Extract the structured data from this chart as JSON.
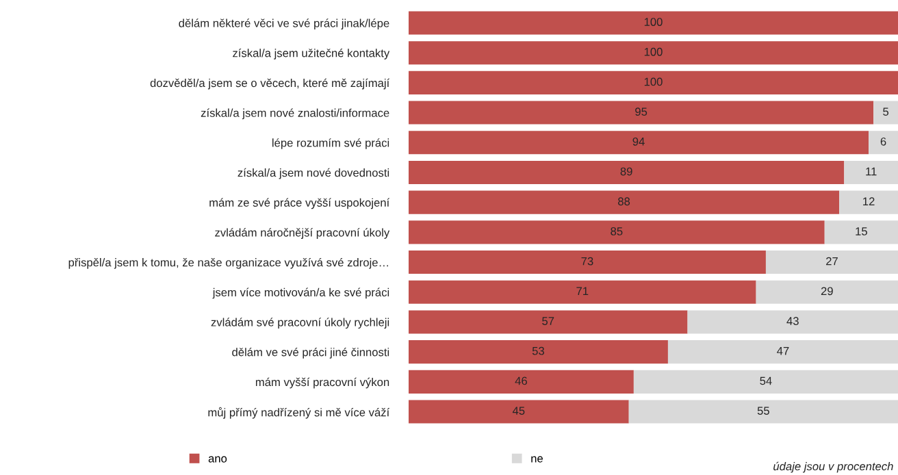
{
  "chart_data": {
    "type": "bar",
    "orientation": "horizontal",
    "stacked": true,
    "categories": [
      "dělám některé věci ve své práci jinak/lépe",
      "získal/a jsem užitečné kontakty",
      "dozvěděl/a jsem se o věcech, které mě zajímají",
      "získal/a jsem nové znalosti/informace",
      "lépe rozumím své práci",
      "získal/a jsem nové dovednosti",
      "mám ze své práce vyšší uspokojení",
      "zvládám náročnější pracovní úkoly",
      "přispěl/a jsem k tomu, že naše organizace využívá své zdroje…",
      "jsem více motivován/a ke své práci",
      "zvládám své pracovní úkoly rychleji",
      "dělám ve své práci jiné činnosti",
      "mám vyšší pracovní výkon",
      "můj přímý nadřízený si mě více váží"
    ],
    "series": [
      {
        "name": "ano",
        "color": "#c0504d",
        "values": [
          100,
          100,
          100,
          95,
          94,
          89,
          88,
          85,
          73,
          71,
          57,
          53,
          46,
          45
        ],
        "value_labels": [
          "100",
          "100",
          "100",
          "95",
          "94",
          "89",
          "88",
          "85",
          "73",
          "71",
          "57",
          "53",
          "46",
          "45"
        ]
      },
      {
        "name": "ne",
        "color": "#d9d9d9",
        "values": [
          0,
          0,
          0,
          5,
          6,
          11,
          12,
          15,
          27,
          29,
          43,
          47,
          54,
          55
        ],
        "value_labels": [
          null,
          null,
          null,
          "5",
          "6",
          "11",
          "12",
          "15",
          "27",
          "29",
          "43",
          "47",
          "54",
          "55"
        ]
      }
    ],
    "tick_labels": "y",
    "legend": "bottom left",
    "grid": false,
    "annotations": [
      "údaje jsou v procentech"
    ]
  }
}
